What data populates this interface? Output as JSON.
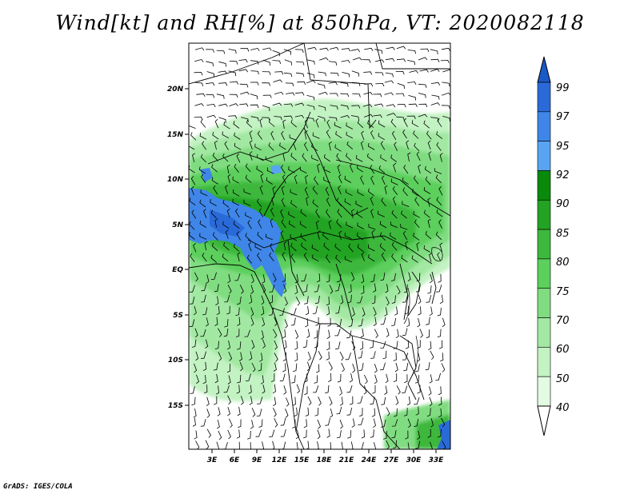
{
  "title": "Wind[kt] and RH[%] at 850hPa, VT: 2020082118",
  "credit": "GrADS: IGES/COLA",
  "map": {
    "lon_range": [
      0,
      35
    ],
    "lat_range": [
      -20,
      24
    ],
    "x_ticks": [
      "3E",
      "6E",
      "9E",
      "12E",
      "15E",
      "18E",
      "21E",
      "24E",
      "27E",
      "30E",
      "33E"
    ],
    "y_ticks": [
      "20N",
      "15N",
      "10N",
      "5N",
      "EQ",
      "5S",
      "10S",
      "15S"
    ]
  },
  "colorbar": {
    "levels": [
      "99",
      "97",
      "95",
      "92",
      "90",
      "85",
      "80",
      "75",
      "70",
      "60",
      "50",
      "40"
    ],
    "colors": [
      "#2a6ad8",
      "#3f86e8",
      "#58a4f2",
      "#0a8a0a",
      "#23a323",
      "#3cb83c",
      "#5ccf5c",
      "#80dc80",
      "#a2e8a2",
      "#c3f2c3",
      "#e3fae3",
      "#ffffff"
    ],
    "top_color": "#1a5ac8"
  }
}
